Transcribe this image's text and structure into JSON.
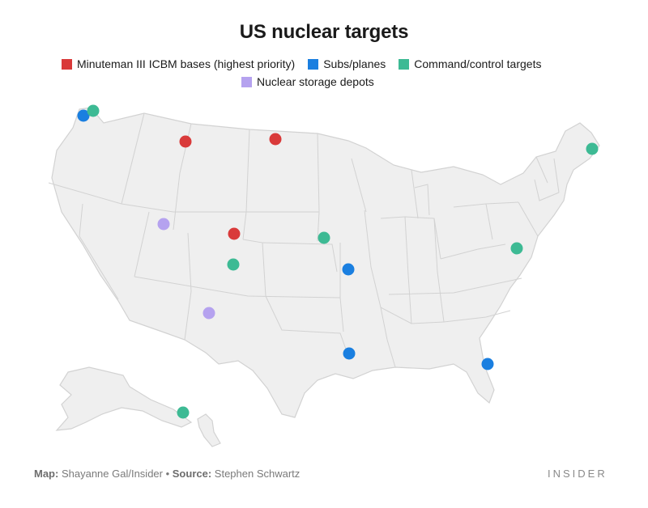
{
  "title": "US nuclear targets",
  "legend": [
    {
      "label": "Minuteman III ICBM bases (highest priority)",
      "color": "#d93a3a"
    },
    {
      "label": "Subs/planes",
      "color": "#1a7fe0"
    },
    {
      "label": "Command/control targets",
      "color": "#3dba94"
    },
    {
      "label": "Nuclear storage depots",
      "color": "#b5a2ef"
    }
  ],
  "targets": [
    {
      "category": "icbm",
      "location": "Montana"
    },
    {
      "category": "icbm",
      "location": "North Dakota"
    },
    {
      "category": "icbm",
      "location": "Wyoming"
    },
    {
      "category": "subs",
      "location": "Washington"
    },
    {
      "category": "subs",
      "location": "Missouri"
    },
    {
      "category": "subs",
      "location": "Louisiana"
    },
    {
      "category": "subs",
      "location": "Georgia"
    },
    {
      "category": "command",
      "location": "Washington"
    },
    {
      "category": "command",
      "location": "Maine"
    },
    {
      "category": "command",
      "location": "Nebraska"
    },
    {
      "category": "command",
      "location": "Colorado"
    },
    {
      "category": "command",
      "location": "Virginia/DC"
    },
    {
      "category": "command",
      "location": "Hawaii"
    },
    {
      "category": "storage",
      "location": "Utah"
    },
    {
      "category": "storage",
      "location": "New Mexico"
    }
  ],
  "credit": {
    "map_label": "Map:",
    "map_value": " Shayanne Gal/Insider",
    "separator": " • ",
    "source_label": "Source:",
    "source_value": " Stephen Schwartz"
  },
  "brand": "INSIDER"
}
